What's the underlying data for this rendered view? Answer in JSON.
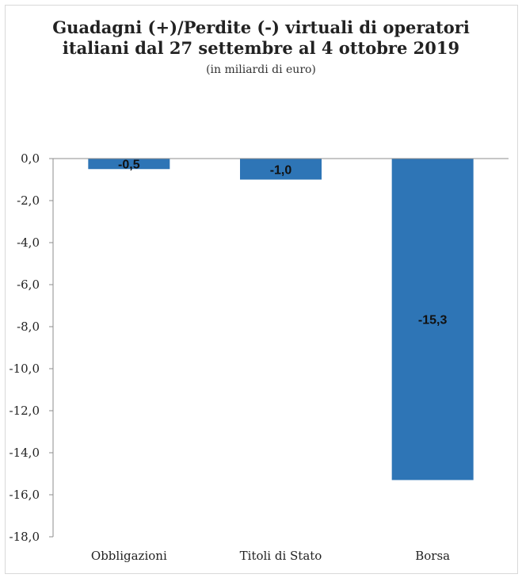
{
  "chart_data": {
    "type": "bar",
    "title_line1": "Guadagni (+)/Perdite (-) virtuali di operatori",
    "title_line2": "italiani dal 27 settembre al 4 ottobre 2019",
    "subtitle": "(in miliardi di euro)",
    "categories": [
      "Obbligazioni",
      "Titoli di Stato",
      "Borsa"
    ],
    "values": [
      -0.5,
      -1.0,
      -15.3
    ],
    "data_labels": [
      "-0,5",
      "-1,0",
      "-15,3"
    ],
    "ylim": [
      -18,
      0
    ],
    "yticks": [
      0,
      -2,
      -4,
      -6,
      -8,
      -10,
      -12,
      -14,
      -16,
      -18
    ],
    "ytick_labels": [
      "0,0",
      "-2,0",
      "-4,0",
      "-6,0",
      "-8,0",
      "-10,0",
      "-12,0",
      "-14,0",
      "-16,0",
      "-18,0"
    ],
    "bar_color": "#2e75b6",
    "grid": false,
    "legend": "none"
  }
}
